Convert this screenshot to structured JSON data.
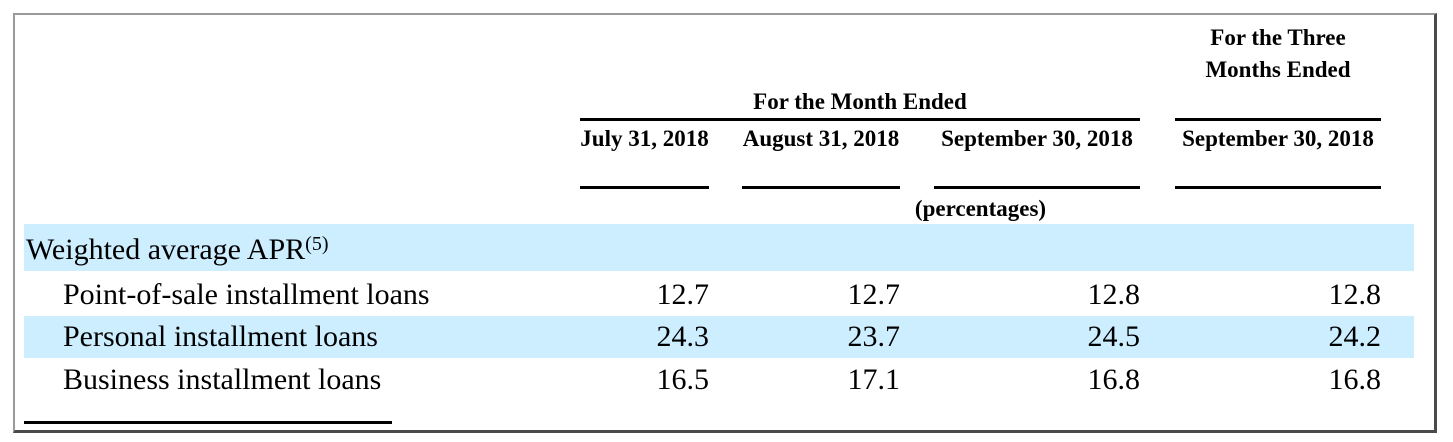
{
  "header": {
    "group_month": "For the Month Ended",
    "group_quarter": "For the Three Months Ended",
    "col1": "July 31, 2018",
    "col2": "August 31, 2018",
    "col3": "September 30, 2018",
    "col4": "September 30, 2018",
    "unit": "(percentages)"
  },
  "section": {
    "label": "Weighted average APR",
    "footnote": "(5)"
  },
  "rows": [
    {
      "label": "Point-of-sale installment loans",
      "values": [
        "12.7",
        "12.7",
        "12.8",
        "12.8"
      ]
    },
    {
      "label": "Personal installment loans",
      "values": [
        "24.3",
        "23.7",
        "24.5",
        "24.2"
      ]
    },
    {
      "label": "Business installment loans",
      "values": [
        "16.5",
        "17.1",
        "16.8",
        "16.8"
      ]
    }
  ],
  "colors": {
    "band": "#cceeff"
  }
}
